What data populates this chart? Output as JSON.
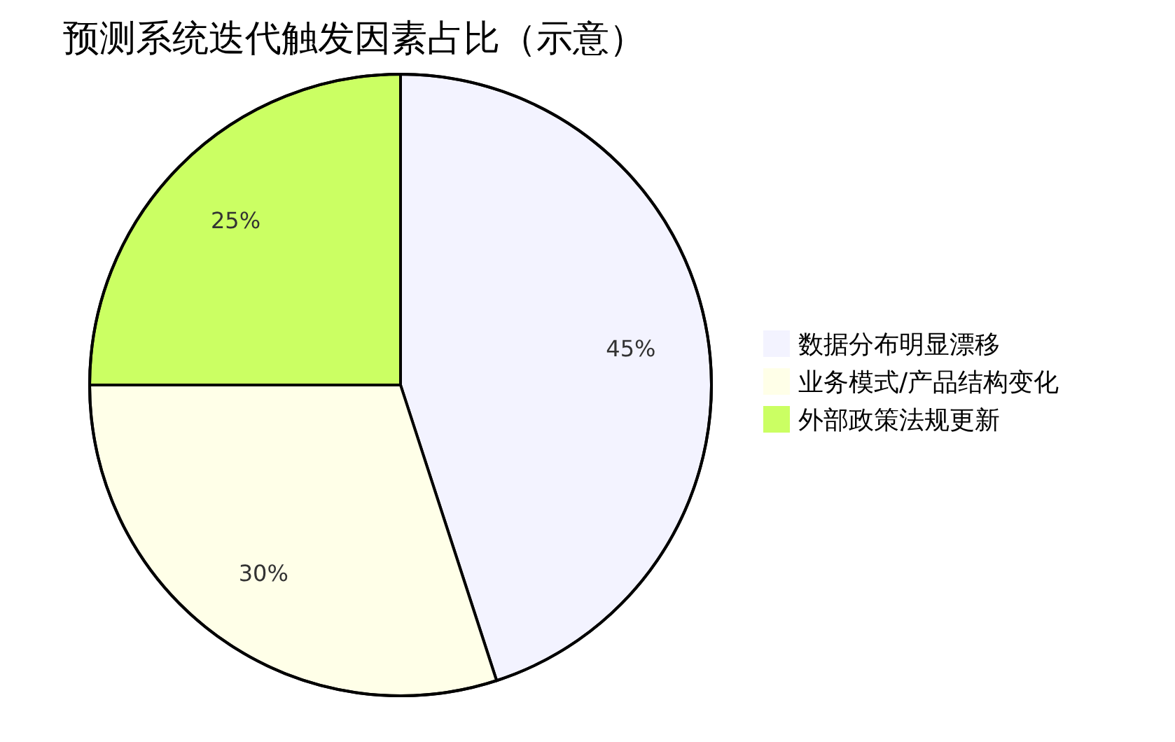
{
  "chart_data": {
    "type": "pie",
    "title": "预测系统迭代触发因素占比（示意）",
    "categories": [
      "数据分布明显漂移",
      "业务模式/产品结构变化",
      "外部政策法规更新"
    ],
    "values": [
      45,
      30,
      25
    ],
    "value_labels": [
      "45%",
      "30%",
      "25%"
    ],
    "colors": [
      "#f3f3ff",
      "#ffffe8",
      "#cbff63"
    ],
    "legend": "right"
  }
}
